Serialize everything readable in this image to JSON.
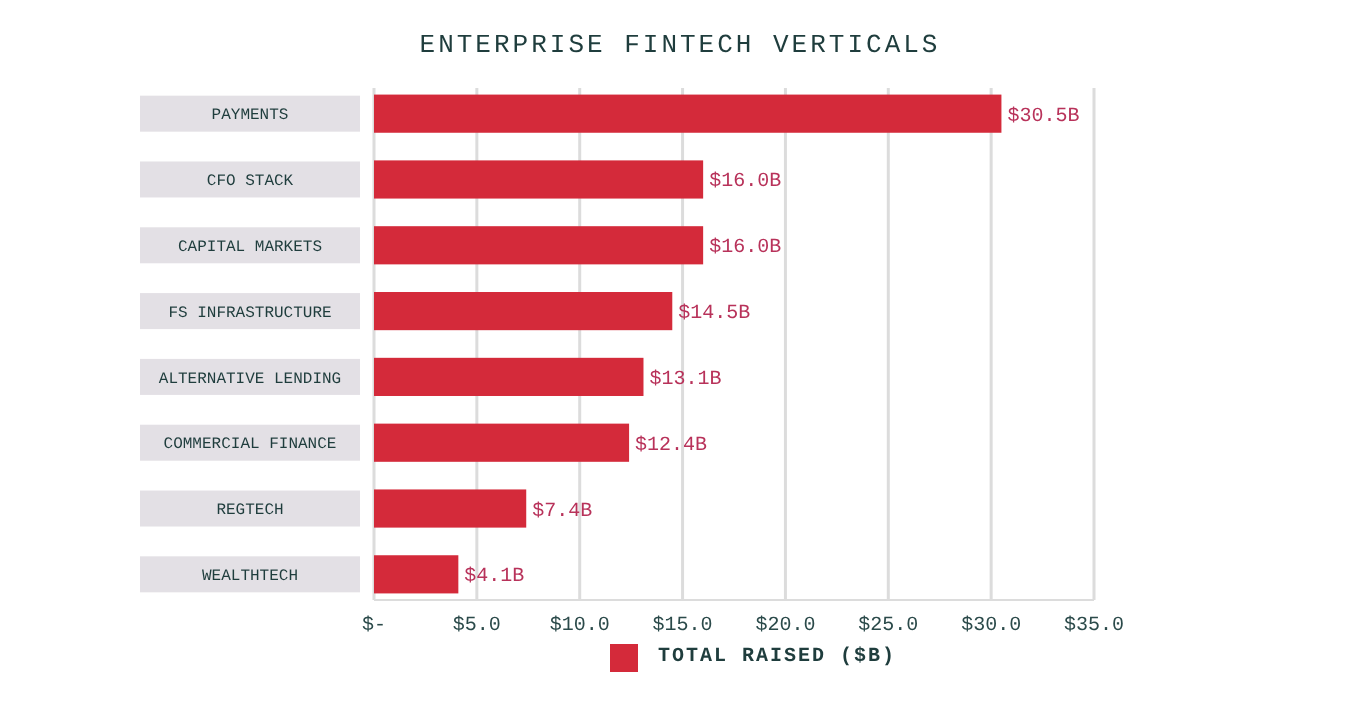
{
  "chart_data": {
    "type": "bar",
    "orientation": "horizontal",
    "title": "ENTERPRISE FINTECH VERTICALS",
    "categories": [
      "PAYMENTS",
      "CFO STACK",
      "CAPITAL MARKETS",
      "FS INFRASTRUCTURE",
      "ALTERNATIVE LENDING",
      "COMMERCIAL FINANCE",
      "REGTECH",
      "WEALTHTECH"
    ],
    "series": [
      {
        "name": "TOTAL RAISED ($B)",
        "color": "#d42a3a",
        "values": [
          30.5,
          16.0,
          16.0,
          14.5,
          13.1,
          12.4,
          7.4,
          4.1
        ],
        "value_labels": [
          "$30.5B",
          "$16.0B",
          "$16.0B",
          "$14.5B",
          "$13.1B",
          "$12.4B",
          "$7.4B",
          "$4.1B"
        ]
      }
    ],
    "xlim": [
      0,
      35
    ],
    "xticks": [
      {
        "value": 0,
        "label": "$-"
      },
      {
        "value": 5,
        "label": "$5.0"
      },
      {
        "value": 10,
        "label": "$10.0"
      },
      {
        "value": 15,
        "label": "$15.0"
      },
      {
        "value": 20,
        "label": "$20.0"
      },
      {
        "value": 25,
        "label": "$25.0"
      },
      {
        "value": 30,
        "label": "$30.0"
      },
      {
        "value": 35,
        "label": "$35.0"
      }
    ],
    "grid": "x",
    "legend": "bottom"
  }
}
